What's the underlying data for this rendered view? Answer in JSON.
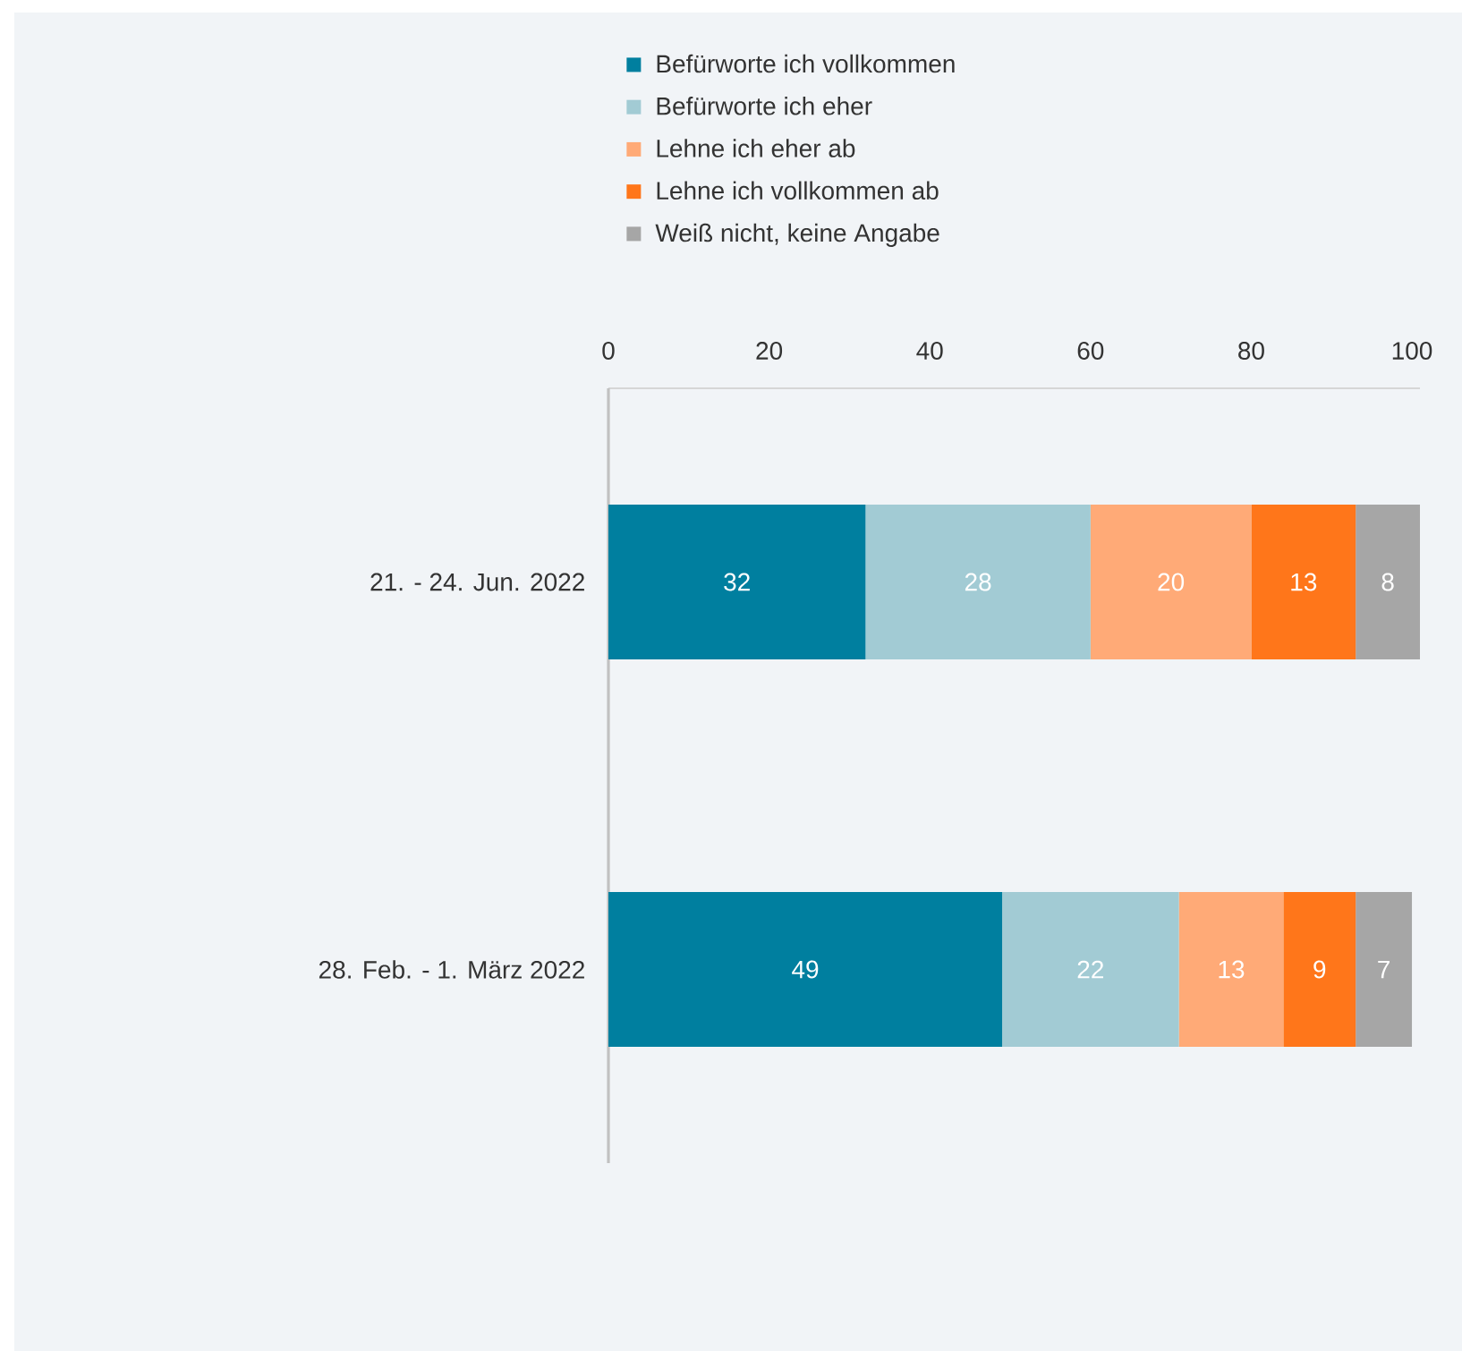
{
  "chart_data": {
    "type": "bar",
    "orientation": "horizontal",
    "stacked": true,
    "categories": [
      "21. - 24. Jun. 2022",
      "28. Feb. - 1. März 2022"
    ],
    "series": [
      {
        "name": "Befürworte ich vollkommen",
        "color": "#007f9f",
        "values": [
          32,
          49
        ]
      },
      {
        "name": "Befürworte ich eher",
        "color": "#a2cbd4",
        "values": [
          28,
          22
        ]
      },
      {
        "name": "Lehne ich eher ab",
        "color": "#ffaa77",
        "values": [
          20,
          13
        ]
      },
      {
        "name": "Lehne ich vollkommen ab",
        "color": "#ff761a",
        "values": [
          13,
          9
        ]
      },
      {
        "name": "Weiß nicht, keine Angabe",
        "color": "#a6a6a6",
        "values": [
          8,
          7
        ]
      }
    ],
    "xlim": [
      0,
      101
    ],
    "xticks": [
      0,
      20,
      40,
      60,
      80,
      100
    ],
    "data_labels": true,
    "legend": "top"
  }
}
